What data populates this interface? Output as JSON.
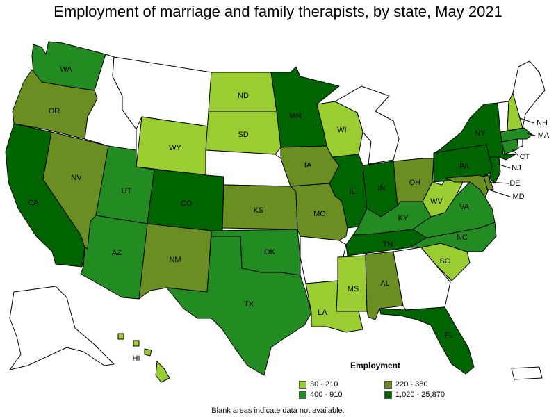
{
  "title": "Employment of marriage and family therapists, by state, May 2021",
  "legend": {
    "title": "Employment",
    "classes": [
      {
        "label": "30 - 210",
        "color": "#9acd32"
      },
      {
        "label": "220 - 380",
        "color": "#6b8e23"
      },
      {
        "label": "400 - 910",
        "color": "#228b22"
      },
      {
        "label": "1,020 - 25,870",
        "color": "#006400"
      }
    ]
  },
  "no_data_color": "#ffffff",
  "footnote": "Blank areas indicate data not available.",
  "states": {
    "WA": {
      "abbr": "WA",
      "class": 2
    },
    "OR": {
      "abbr": "OR",
      "class": 1
    },
    "CA": {
      "abbr": "CA",
      "class": 3
    },
    "NV": {
      "abbr": "NV",
      "class": 1
    },
    "ID": {
      "abbr": "",
      "class": -1
    },
    "MT": {
      "abbr": "",
      "class": -1
    },
    "WY": {
      "abbr": "WY",
      "class": 0
    },
    "UT": {
      "abbr": "UT",
      "class": 2
    },
    "AZ": {
      "abbr": "AZ",
      "class": 2
    },
    "CO": {
      "abbr": "CO",
      "class": 3
    },
    "NM": {
      "abbr": "NM",
      "class": 1
    },
    "ND": {
      "abbr": "ND",
      "class": 0
    },
    "SD": {
      "abbr": "SD",
      "class": 0
    },
    "NE": {
      "abbr": "",
      "class": -1
    },
    "KS": {
      "abbr": "KS",
      "class": 1
    },
    "OK": {
      "abbr": "OK",
      "class": 2
    },
    "TX": {
      "abbr": "TX",
      "class": 2
    },
    "MN": {
      "abbr": "MN",
      "class": 3
    },
    "IA": {
      "abbr": "IA",
      "class": 1
    },
    "MO": {
      "abbr": "MO",
      "class": 1
    },
    "AR": {
      "abbr": "",
      "class": -1
    },
    "LA": {
      "abbr": "LA",
      "class": 0
    },
    "WI": {
      "abbr": "WI",
      "class": 0
    },
    "IL": {
      "abbr": "IL",
      "class": 3
    },
    "MI": {
      "abbr": "",
      "class": -1
    },
    "IN": {
      "abbr": "IN",
      "class": 3
    },
    "OH": {
      "abbr": "OH",
      "class": 1
    },
    "KY": {
      "abbr": "KY",
      "class": 2
    },
    "TN": {
      "abbr": "TN",
      "class": 3
    },
    "MS": {
      "abbr": "MS",
      "class": 0
    },
    "AL": {
      "abbr": "AL",
      "class": 1
    },
    "GA": {
      "abbr": "",
      "class": -1
    },
    "FL": {
      "abbr": "FL",
      "class": 3
    },
    "SC": {
      "abbr": "SC",
      "class": 0
    },
    "NC": {
      "abbr": "NC",
      "class": 2
    },
    "VA": {
      "abbr": "VA",
      "class": 2
    },
    "WV": {
      "abbr": "WV",
      "class": 0
    },
    "PA": {
      "abbr": "PA",
      "class": 3
    },
    "NY": {
      "abbr": "NY",
      "class": 3
    },
    "MD": {
      "abbr": "MD",
      "class": 1
    },
    "DE": {
      "abbr": "DE",
      "class": 1
    },
    "NJ": {
      "abbr": "NJ",
      "class": 3
    },
    "CT": {
      "abbr": "CT",
      "class": 2
    },
    "MA": {
      "abbr": "MA",
      "class": 2
    },
    "VT": {
      "abbr": "",
      "class": -1
    },
    "NH": {
      "abbr": "NH",
      "class": 0
    },
    "ME": {
      "abbr": "",
      "class": -1
    },
    "RI": {
      "abbr": "",
      "class": -1
    },
    "AK": {
      "abbr": "",
      "class": -1
    },
    "HI": {
      "abbr": "HI",
      "class": 0
    },
    "PR": {
      "abbr": "",
      "class": -1
    }
  }
}
